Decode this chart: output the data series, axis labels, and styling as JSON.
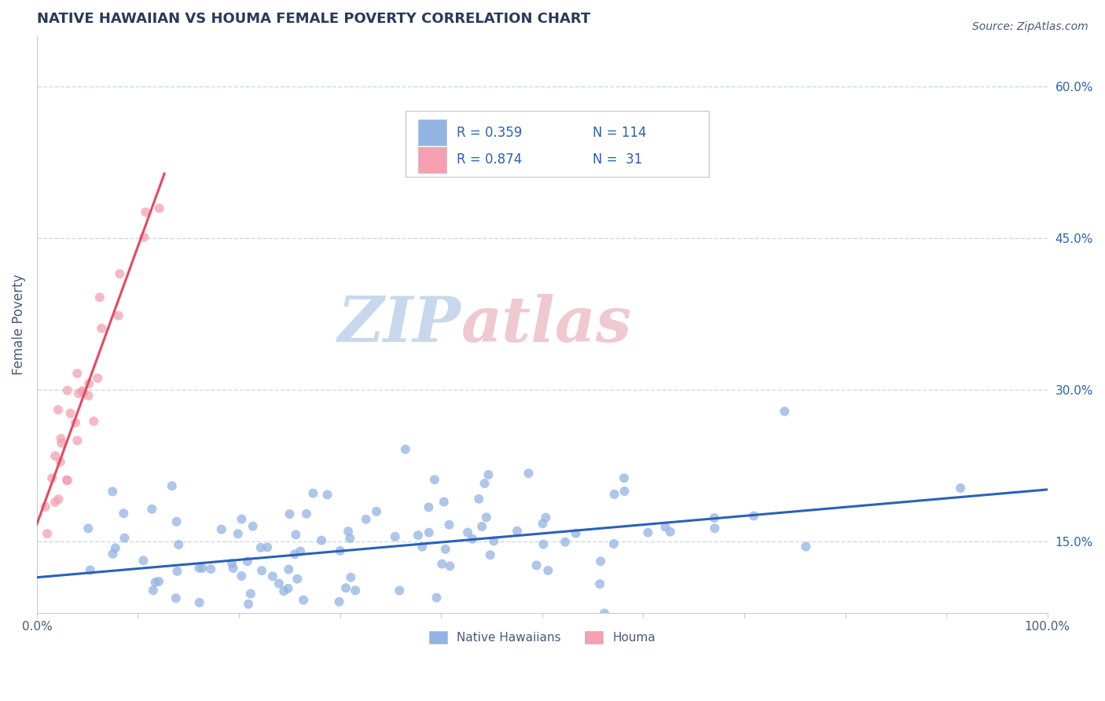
{
  "title": "NATIVE HAWAIIAN VS HOUMA FEMALE POVERTY CORRELATION CHART",
  "source": "Source: ZipAtlas.com",
  "ylabel": "Female Poverty",
  "xlim": [
    0.0,
    1.0
  ],
  "ylim": [
    0.08,
    0.65
  ],
  "yticks_right": [
    0.15,
    0.3,
    0.45,
    0.6
  ],
  "ytick_labels_right": [
    "15.0%",
    "30.0%",
    "45.0%",
    "60.0%"
  ],
  "xticks": [
    0.0,
    0.1,
    0.2,
    0.3,
    0.4,
    0.5,
    0.6,
    0.7,
    0.8,
    0.9,
    1.0
  ],
  "xtick_labels": [
    "0.0%",
    "",
    "",
    "",
    "",
    "",
    "",
    "",
    "",
    "",
    "100.0%"
  ],
  "blue_R": 0.359,
  "blue_N": 114,
  "pink_R": 0.874,
  "pink_N": 31,
  "blue_color": "#92b4e3",
  "pink_color": "#f4a0b0",
  "blue_line_color": "#2962b8",
  "pink_line_color": "#e8475f",
  "watermark": "ZIPatlas",
  "watermark_blue": "#c8d8ec",
  "watermark_pink": "#f0c8d0",
  "legend_label_blue": "Native Hawaiians",
  "legend_label_pink": "Houma",
  "background_color": "#ffffff",
  "grid_color": "#d0d8e8",
  "title_color": "#2a3a5a",
  "axis_label_color": "#4a5a7a"
}
